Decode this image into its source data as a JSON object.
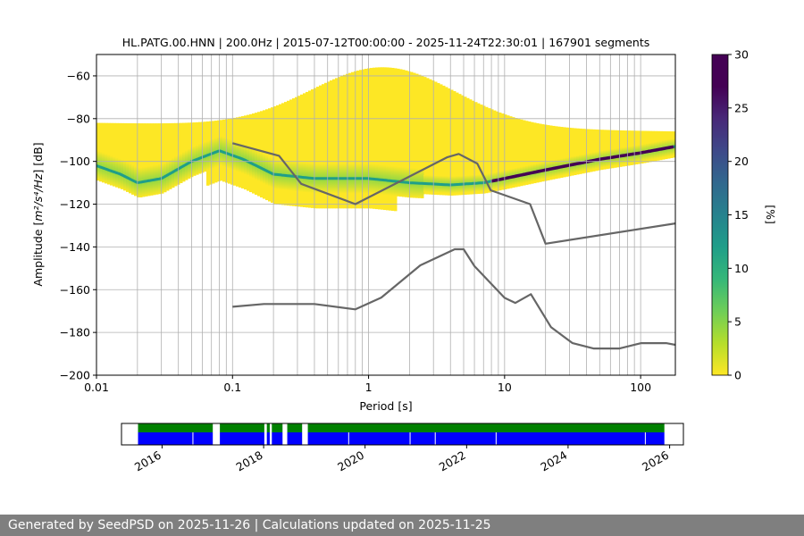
{
  "chart_data": [
    {
      "type": "heatmap",
      "title": "HL.PATG.00.HNN | 200.0Hz | 2015-07-12T00:00:00 - 2025-11-24T22:30:01 | 167901 segments",
      "xlabel": "Period [s]",
      "ylabel_prefix": "Amplitude [",
      "ylabel_math": "m²/s⁴/Hz",
      "ylabel_suffix": "] [dB]",
      "x_scale": "log",
      "xlim": [
        0.01,
        180
      ],
      "ylim": [
        -200,
        -50
      ],
      "x_ticks": [
        0.01,
        0.1,
        1,
        10,
        100
      ],
      "x_tick_labels": [
        "0.01",
        "0.1",
        "1",
        "10",
        "100"
      ],
      "y_ticks": [
        -200,
        -180,
        -160,
        -140,
        -120,
        -100,
        -80,
        -60
      ],
      "y_tick_labels": [
        "−200",
        "−180",
        "−160",
        "−140",
        "−120",
        "−100",
        "−80",
        "−60"
      ],
      "grid": true,
      "colorbar": {
        "label": "[%]",
        "colormap": "viridis_r",
        "range": [
          0,
          30
        ],
        "ticks": [
          0,
          5,
          10,
          15,
          20,
          25,
          30
        ],
        "tick_labels": [
          "0",
          "5",
          "10",
          "15",
          "20",
          "25",
          "30"
        ]
      },
      "mode_curve": [
        {
          "x": 0.01,
          "y": -102
        },
        {
          "x": 0.015,
          "y": -106
        },
        {
          "x": 0.02,
          "y": -110
        },
        {
          "x": 0.03,
          "y": -108
        },
        {
          "x": 0.05,
          "y": -100
        },
        {
          "x": 0.08,
          "y": -95
        },
        {
          "x": 0.12,
          "y": -99
        },
        {
          "x": 0.2,
          "y": -106
        },
        {
          "x": 0.4,
          "y": -108
        },
        {
          "x": 1,
          "y": -108
        },
        {
          "x": 2,
          "y": -110
        },
        {
          "x": 4,
          "y": -111
        },
        {
          "x": 7,
          "y": -110
        },
        {
          "x": 10,
          "y": -108
        },
        {
          "x": 20,
          "y": -104
        },
        {
          "x": 50,
          "y": -99
        },
        {
          "x": 100,
          "y": -96
        },
        {
          "x": 180,
          "y": -93
        }
      ],
      "series": [
        {
          "line": "NHNM",
          "color": "#666666",
          "points": [
            {
              "x": 0.1,
              "y": -91.5
            },
            {
              "x": 0.22,
              "y": -97.4
            },
            {
              "x": 0.32,
              "y": -110.5
            },
            {
              "x": 0.8,
              "y": -120
            },
            {
              "x": 3.8,
              "y": -98
            },
            {
              "x": 4.6,
              "y": -96.5
            },
            {
              "x": 6.3,
              "y": -101
            },
            {
              "x": 7.9,
              "y": -113.5
            },
            {
              "x": 15.4,
              "y": -120
            },
            {
              "x": 20,
              "y": -138.5
            },
            {
              "x": 180,
              "y": -129
            }
          ]
        },
        {
          "line": "NLNM",
          "color": "#666666",
          "points": [
            {
              "x": 0.1,
              "y": -168
            },
            {
              "x": 0.17,
              "y": -166.7
            },
            {
              "x": 0.4,
              "y": -166.7
            },
            {
              "x": 0.8,
              "y": -169.2
            },
            {
              "x": 1.24,
              "y": -163.7
            },
            {
              "x": 2.4,
              "y": -148.6
            },
            {
              "x": 4.3,
              "y": -141.1
            },
            {
              "x": 5.0,
              "y": -141.1
            },
            {
              "x": 6.0,
              "y": -149
            },
            {
              "x": 10,
              "y": -163.8
            },
            {
              "x": 12,
              "y": -166.2
            },
            {
              "x": 15.6,
              "y": -162.1
            },
            {
              "x": 21.9,
              "y": -177.5
            },
            {
              "x": 31.6,
              "y": -185
            },
            {
              "x": 45,
              "y": -187.5
            },
            {
              "x": 70,
              "y": -187.5
            },
            {
              "x": 101,
              "y": -185
            },
            {
              "x": 154,
              "y": -185
            },
            {
              "x": 180,
              "y": -185.8
            }
          ]
        }
      ]
    },
    {
      "type": "area",
      "title": "",
      "x_scale": "time",
      "xlim": [
        "2015-03-15",
        "2026-04-10"
      ],
      "x_ticks": [
        "2016-01-01",
        "2018-01-01",
        "2020-01-01",
        "2022-01-01",
        "2024-01-01",
        "2026-01-01"
      ],
      "x_tick_labels": [
        "2016",
        "2018",
        "2020",
        "2022",
        "2024",
        "2026"
      ],
      "color_top": "#008000",
      "color_bottom": "#0000ff",
      "coverage_segments": [
        [
          "2015-07-12",
          "2016-12-31"
        ],
        [
          "2017-02-20",
          "2018-01-06"
        ],
        [
          "2018-01-24",
          "2018-02-14"
        ],
        [
          "2018-03-01",
          "2018-05-17"
        ],
        [
          "2018-06-20",
          "2018-10-05"
        ],
        [
          "2018-11-15",
          "2025-11-24"
        ]
      ],
      "minor_gaps": [
        "2016-08-10",
        "2019-09-05",
        "2020-11-20",
        "2021-05-20",
        "2022-08-01",
        "2025-07-10"
      ]
    }
  ],
  "footer": {
    "text": "Generated by SeedPSD on 2025-11-26 | Calculations updated on 2025-11-25"
  }
}
